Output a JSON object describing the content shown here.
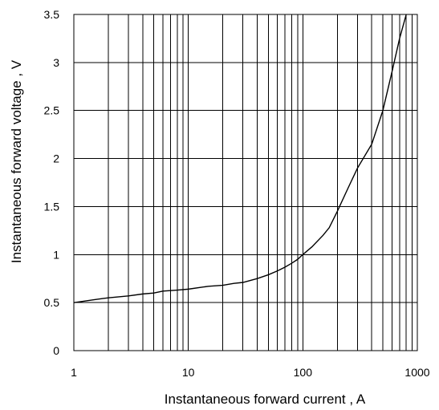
{
  "chart_data": {
    "type": "line",
    "title": "",
    "xlabel": "Instantaneous forward current , A",
    "ylabel": "Instantaneous forward  voltage , V",
    "x_scale": "log",
    "y_scale": "linear",
    "xlim": [
      1,
      1000
    ],
    "ylim": [
      0,
      3.5
    ],
    "grid": true,
    "x_ticks": [
      1,
      10,
      100,
      1000
    ],
    "x_tick_labels": [
      "1",
      "10",
      "100",
      "1000"
    ],
    "y_ticks": [
      0,
      0.5,
      1,
      1.5,
      2,
      2.5,
      3,
      3.5
    ],
    "y_tick_labels": [
      "0",
      "0.5",
      "1",
      "1.5",
      "2",
      "2.5",
      "3",
      "3.5"
    ],
    "series": [
      {
        "x": [
          1,
          1.5,
          2,
          3,
          4,
          5,
          6,
          8,
          10,
          15,
          20,
          25,
          30,
          40,
          50,
          60,
          70,
          80,
          90,
          100,
          120,
          150,
          170,
          200,
          250,
          300,
          400,
          500,
          600,
          700,
          800
        ],
        "y": [
          0.5,
          0.53,
          0.55,
          0.57,
          0.59,
          0.6,
          0.62,
          0.63,
          0.64,
          0.67,
          0.68,
          0.7,
          0.71,
          0.75,
          0.79,
          0.83,
          0.87,
          0.91,
          0.95,
          1.0,
          1.08,
          1.2,
          1.28,
          1.45,
          1.7,
          1.9,
          2.15,
          2.5,
          2.9,
          3.25,
          3.5
        ]
      }
    ]
  }
}
